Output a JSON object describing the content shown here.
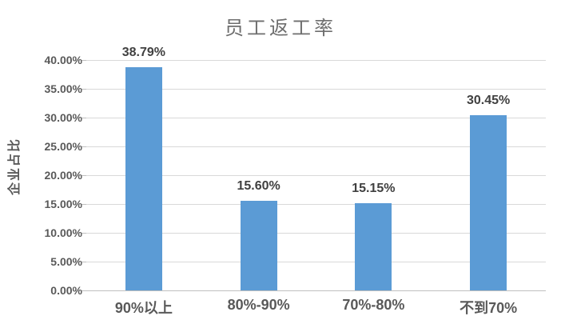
{
  "chart_data": {
    "type": "bar",
    "title": "员工返工率",
    "xlabel": "",
    "ylabel": "企业占比",
    "categories": [
      "90%以上",
      "80%-90%",
      "70%-80%",
      "不到70%"
    ],
    "values": [
      38.79,
      15.6,
      15.15,
      30.45
    ],
    "value_labels": [
      "38.79%",
      "15.60%",
      "15.15%",
      "30.45%"
    ],
    "ytick_values": [
      40,
      35,
      30,
      25,
      20,
      15,
      10,
      5,
      0
    ],
    "ytick_labels": [
      "40.00%",
      "35.00%",
      "30.00%",
      "25.00%",
      "20.00%",
      "15.00%",
      "10.00%",
      "5.00%",
      "0.00%"
    ],
    "ylim": [
      0,
      40
    ],
    "grid": true,
    "legend": "none",
    "colors": {
      "bar": "#5b9bd5",
      "gridline": "#d9d9d9",
      "axis_line": "#bfbfbf",
      "title_text": "#6e6e6e",
      "axis_text": "#595959",
      "data_label_text": "#404040",
      "background": "#ffffff"
    }
  }
}
